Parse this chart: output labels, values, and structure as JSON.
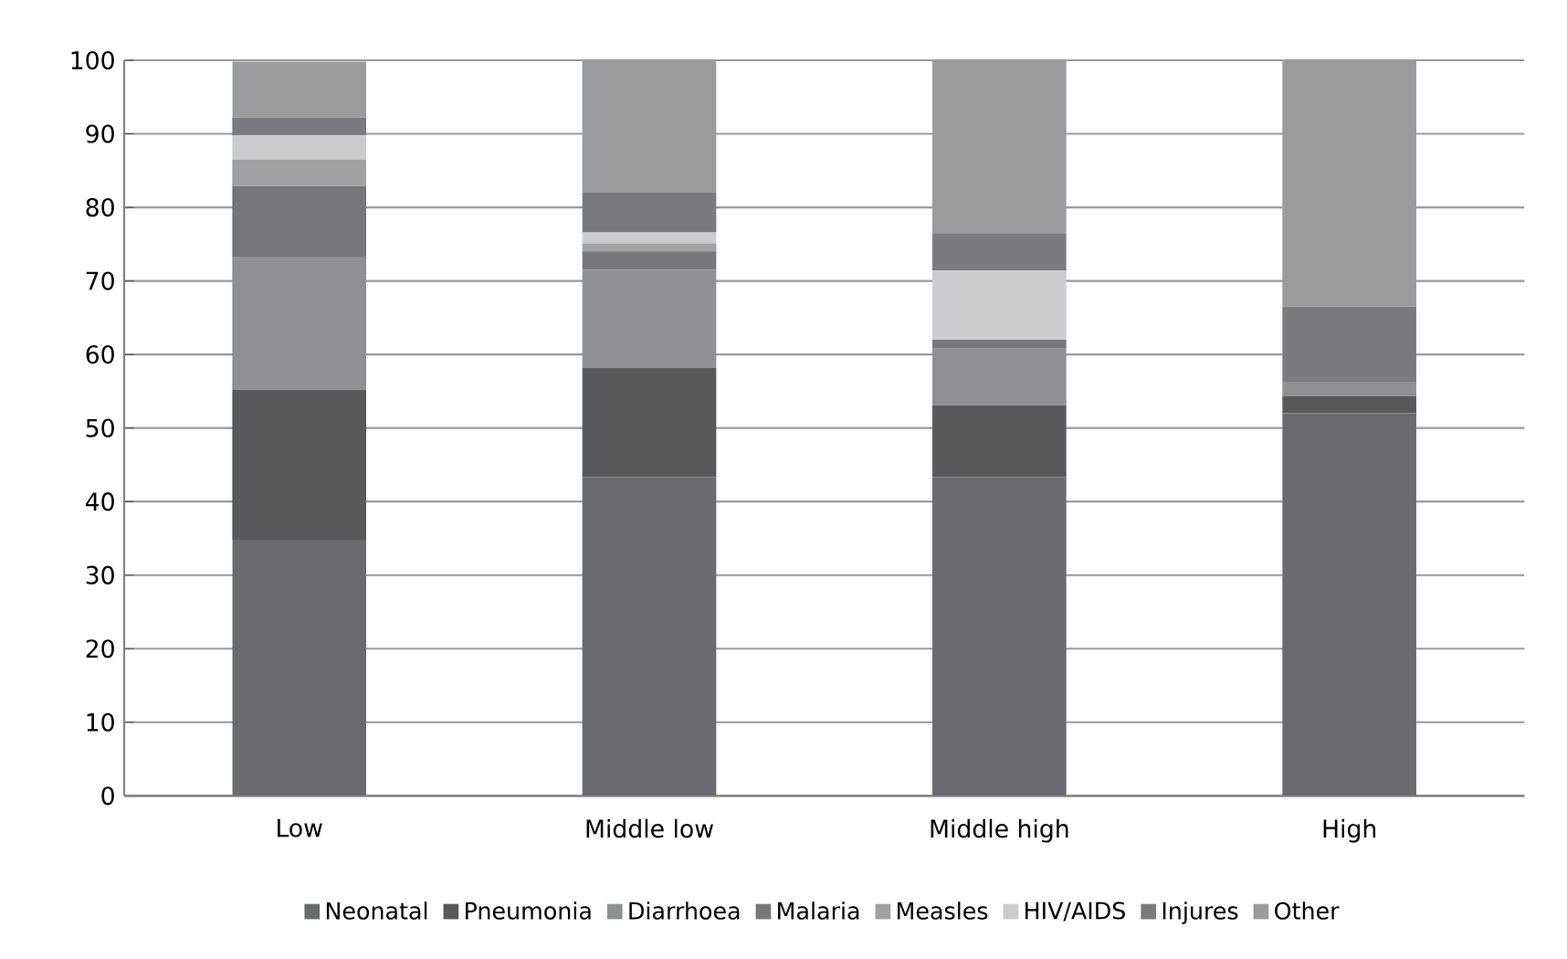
{
  "chart_data": {
    "type": "bar",
    "stacked": true,
    "categories": [
      "Low",
      "Middle low",
      "Middle high",
      "High"
    ],
    "series": [
      {
        "name": "Neonatal",
        "color": "#6a6b6f",
        "values": [
          34.8,
          43.3,
          43.3,
          52.0
        ]
      },
      {
        "name": "Pneumonia",
        "color": "#58595b",
        "values": [
          20.4,
          14.9,
          9.8,
          2.3
        ]
      },
      {
        "name": "Diarrhoea",
        "color": "#8f9093",
        "values": [
          18.1,
          13.3,
          7.7,
          2.0
        ]
      },
      {
        "name": "Malaria",
        "color": "#76777a",
        "values": [
          9.6,
          2.5,
          1.2,
          0
        ]
      },
      {
        "name": "Measles",
        "color": "#a0a1a3",
        "values": [
          3.6,
          1.1,
          0,
          0
        ]
      },
      {
        "name": "HIV/AIDS",
        "color": "#cbcccd",
        "values": [
          3.3,
          1.5,
          9.4,
          0
        ]
      },
      {
        "name": "Injures",
        "color": "#7a7b7e",
        "values": [
          2.4,
          5.4,
          5.1,
          10.2
        ]
      },
      {
        "name": "Other",
        "color": "#9a9b9d",
        "values": [
          7.6,
          18.0,
          23.5,
          33.5
        ]
      }
    ],
    "ylim": [
      0,
      100
    ],
    "yticks": [
      0,
      10,
      20,
      30,
      40,
      50,
      60,
      70,
      80,
      90,
      100
    ],
    "grid": "y",
    "legend": "bottom"
  }
}
